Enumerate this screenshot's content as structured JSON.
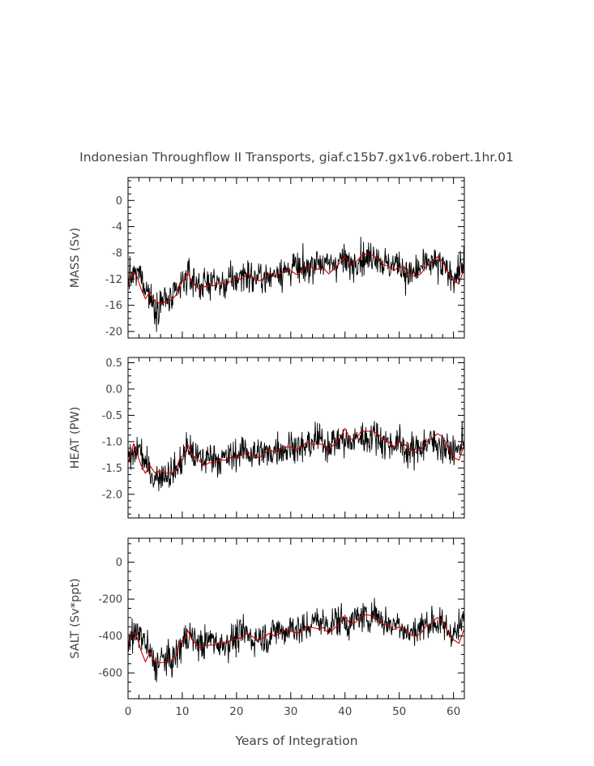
{
  "figure": {
    "title": "Indonesian Throughflow II Transports, giaf.c15b7.gx1v6.robert.1hr.01",
    "xlabel": "Years of Integration"
  },
  "chart_data": [
    {
      "type": "line",
      "ylabel": "MASS (Sv)",
      "xlim": [
        0,
        62
      ],
      "ylim": [
        -21,
        3.5
      ],
      "yticks": [
        0,
        -4,
        -8,
        -12,
        -16,
        -20
      ],
      "ytick_labels": [
        "0",
        "-4",
        "-8",
        "-12",
        "-16",
        "-20"
      ],
      "xticks": [
        0,
        10,
        20,
        30,
        40,
        50,
        60
      ],
      "xtick_labels": [],
      "series": [
        {
          "color": "#000000",
          "x": [
            0.5,
            2,
            3.5,
            5,
            6.5,
            8,
            9.5,
            11,
            12.5,
            14,
            15.5,
            17,
            18.5,
            20,
            21.5,
            23,
            24.5,
            26,
            27.5,
            29,
            30.5,
            32,
            33.5,
            35,
            36.5,
            38,
            39.5,
            41,
            42.5,
            44,
            45.5,
            47,
            48.5,
            50,
            51.5,
            53,
            54.5,
            56,
            57.5,
            59,
            60.5,
            62
          ],
          "y": [
            -12,
            -11,
            -13.5,
            -16.5,
            -15,
            -15.5,
            -13.5,
            -11.5,
            -12.5,
            -13,
            -12,
            -13,
            -12.5,
            -12,
            -11,
            -12,
            -11.5,
            -12,
            -10.5,
            -11,
            -10,
            -11,
            -10,
            -9,
            -10,
            -9.5,
            -9,
            -10,
            -8.5,
            -9,
            -8,
            -9.5,
            -10,
            -9.5,
            -11.5,
            -11,
            -10,
            -9.5,
            -10,
            -11,
            -11.5,
            -9
          ]
        },
        {
          "color": "#cc0000",
          "x": [
            0,
            1,
            1.6,
            2.4,
            3.2,
            4,
            5,
            6,
            7,
            8,
            8.8,
            9.6,
            10.4,
            11,
            11.8,
            13,
            14,
            15,
            16,
            17,
            18,
            19,
            20,
            21,
            22,
            23,
            24,
            25,
            26,
            27,
            28,
            29,
            30,
            31,
            32,
            33,
            34,
            35,
            36,
            37,
            38,
            39,
            40,
            41,
            42,
            43,
            44,
            45,
            46,
            47,
            48,
            49,
            50,
            51,
            52,
            53,
            54,
            55,
            56,
            57,
            58,
            59,
            60,
            61,
            62
          ],
          "y": [
            -12.5,
            -11,
            -11.5,
            -13.5,
            -15,
            -14,
            -15.5,
            -15.7,
            -15.5,
            -15.2,
            -14.5,
            -12.5,
            -12.2,
            -11,
            -12.5,
            -13.5,
            -13.2,
            -13,
            -13,
            -12.5,
            -12.8,
            -12.3,
            -12,
            -12,
            -11.2,
            -11.7,
            -12.3,
            -12,
            -11.2,
            -11.6,
            -11.2,
            -10.6,
            -10.7,
            -11.3,
            -10.9,
            -10,
            -10.3,
            -10.5,
            -10.3,
            -11.2,
            -10.4,
            -9.6,
            -8.6,
            -9.8,
            -9.5,
            -8.4,
            -8.2,
            -8.3,
            -8.9,
            -9.8,
            -10,
            -10.7,
            -10.1,
            -10.3,
            -11.3,
            -11.6,
            -11.2,
            -10,
            -9.5,
            -8.6,
            -9.3,
            -11.1,
            -12.3,
            -12.7,
            -10.3
          ]
        }
      ]
    },
    {
      "type": "line",
      "ylabel": "HEAT (PW)",
      "xlim": [
        0,
        62
      ],
      "ylim": [
        -2.45,
        0.6
      ],
      "yticks": [
        0.5,
        0,
        -0.5,
        -1,
        -1.5,
        -2
      ],
      "ytick_labels": [
        "0.5",
        "0.0",
        "-0.5",
        "-1.0",
        "-1.5",
        "-2.0"
      ],
      "xticks": [
        0,
        10,
        20,
        30,
        40,
        50,
        60
      ],
      "xtick_labels": [],
      "series": [
        {
          "color": "#000000",
          "x": [
            0.5,
            2,
            3.5,
            5,
            6.5,
            8,
            9.5,
            11,
            12.5,
            14,
            15.5,
            17,
            18.5,
            20,
            21.5,
            23,
            24.5,
            26,
            27.5,
            29,
            30.5,
            32,
            33.5,
            35,
            36.5,
            38,
            39.5,
            41,
            42.5,
            44,
            45.5,
            47,
            48.5,
            50,
            51.5,
            53,
            54.5,
            56,
            57.5,
            59,
            60.5,
            62
          ],
          "y": [
            -1.35,
            -1.1,
            -1.5,
            -1.7,
            -1.6,
            -1.6,
            -1.45,
            -1.1,
            -1.3,
            -1.35,
            -1.25,
            -1.35,
            -1.3,
            -1.25,
            -1.15,
            -1.25,
            -1.2,
            -1.25,
            -1.1,
            -1.15,
            -1.05,
            -1.15,
            -1.05,
            -0.95,
            -1.05,
            -1,
            -0.95,
            -1.05,
            -0.9,
            -0.95,
            -0.85,
            -1,
            -1.05,
            -1,
            -1.2,
            -1.15,
            -1.05,
            -1,
            -1.05,
            -1.15,
            -1.2,
            -0.95
          ]
        },
        {
          "color": "#cc0000",
          "x": [
            0,
            1,
            1.6,
            2.4,
            3.2,
            4,
            5,
            6,
            7,
            8,
            8.8,
            9.6,
            10.4,
            11,
            11.8,
            13,
            14,
            15,
            16,
            17,
            18,
            19,
            20,
            21,
            22,
            23,
            24,
            25,
            26,
            27,
            28,
            29,
            30,
            31,
            32,
            33,
            34,
            35,
            36,
            37,
            38,
            39,
            40,
            41,
            42,
            43,
            44,
            45,
            46,
            47,
            48,
            49,
            50,
            51,
            52,
            53,
            54,
            55,
            56,
            57,
            58,
            59,
            60,
            61,
            62
          ],
          "y": [
            -1.4,
            -1.05,
            -1.2,
            -1.45,
            -1.6,
            -1.45,
            -1.6,
            -1.55,
            -1.6,
            -1.6,
            -1.55,
            -1.3,
            -1.25,
            -1.05,
            -1.25,
            -1.35,
            -1.45,
            -1.4,
            -1.4,
            -1.35,
            -1.35,
            -1.3,
            -1.3,
            -1.25,
            -1.2,
            -1.25,
            -1.3,
            -1.25,
            -1.15,
            -1.2,
            -1.15,
            -1.1,
            -1.1,
            -1.15,
            -1.1,
            -1,
            -1.05,
            -1.05,
            -1.05,
            -1.15,
            -1.05,
            -0.95,
            -0.75,
            -0.95,
            -0.95,
            -0.8,
            -0.8,
            -0.8,
            -0.85,
            -0.95,
            -1,
            -1.1,
            -1,
            -1.05,
            -1.15,
            -1.2,
            -1.15,
            -1,
            -0.95,
            -0.85,
            -0.9,
            -1.1,
            -1.3,
            -1.35,
            -1.05
          ]
        }
      ]
    },
    {
      "type": "line",
      "ylabel": "SALT (Sv*ppt)",
      "xlim": [
        0,
        62
      ],
      "ylim": [
        -740,
        130
      ],
      "yticks": [
        0,
        -200,
        -400,
        -600
      ],
      "ytick_labels": [
        "0",
        "-200",
        "-400",
        "-600"
      ],
      "xticks": [
        0,
        10,
        20,
        30,
        40,
        50,
        60
      ],
      "xtick_labels": [
        "0",
        "10",
        "20",
        "30",
        "40",
        "50",
        "60"
      ],
      "series": [
        {
          "color": "#000000",
          "x": [
            0.5,
            2,
            3.5,
            5,
            6.5,
            8,
            9.5,
            11,
            12.5,
            14,
            15.5,
            17,
            18.5,
            20,
            21.5,
            23,
            24.5,
            26,
            27.5,
            29,
            30.5,
            32,
            33.5,
            35,
            36.5,
            38,
            39.5,
            41,
            42.5,
            44,
            45.5,
            47,
            48.5,
            50,
            51.5,
            53,
            54.5,
            56,
            57.5,
            59,
            60.5,
            62
          ],
          "y": [
            -420,
            -380,
            -460,
            -560,
            -520,
            -540,
            -470,
            -390,
            -430,
            -450,
            -410,
            -450,
            -430,
            -410,
            -380,
            -420,
            -400,
            -410,
            -360,
            -380,
            -340,
            -380,
            -340,
            -310,
            -340,
            -320,
            -310,
            -340,
            -290,
            -310,
            -270,
            -320,
            -340,
            -320,
            -390,
            -370,
            -340,
            -320,
            -340,
            -370,
            -390,
            -310
          ]
        },
        {
          "color": "#cc0000",
          "x": [
            0,
            1,
            1.6,
            2.4,
            3.2,
            4,
            5,
            6,
            7,
            8,
            8.8,
            9.6,
            10.4,
            11,
            11.8,
            13,
            14,
            15,
            16,
            17,
            18,
            19,
            20,
            21,
            22,
            23,
            24,
            25,
            26,
            27,
            28,
            29,
            30,
            31,
            32,
            33,
            34,
            35,
            36,
            37,
            38,
            39,
            40,
            41,
            42,
            43,
            44,
            45,
            46,
            47,
            48,
            49,
            50,
            51,
            52,
            53,
            54,
            55,
            56,
            57,
            58,
            59,
            60,
            61,
            62
          ],
          "y": [
            -440,
            -380,
            -400,
            -480,
            -540,
            -490,
            -540,
            -545,
            -540,
            -530,
            -510,
            -430,
            -420,
            -370,
            -420,
            -460,
            -455,
            -450,
            -450,
            -430,
            -440,
            -425,
            -415,
            -410,
            -385,
            -405,
            -425,
            -410,
            -385,
            -400,
            -385,
            -365,
            -370,
            -385,
            -375,
            -345,
            -355,
            -360,
            -355,
            -385,
            -360,
            -330,
            -295,
            -335,
            -325,
            -290,
            -285,
            -290,
            -305,
            -335,
            -345,
            -365,
            -350,
            -355,
            -390,
            -400,
            -385,
            -345,
            -330,
            -300,
            -320,
            -380,
            -420,
            -440,
            -360
          ]
        }
      ]
    }
  ]
}
